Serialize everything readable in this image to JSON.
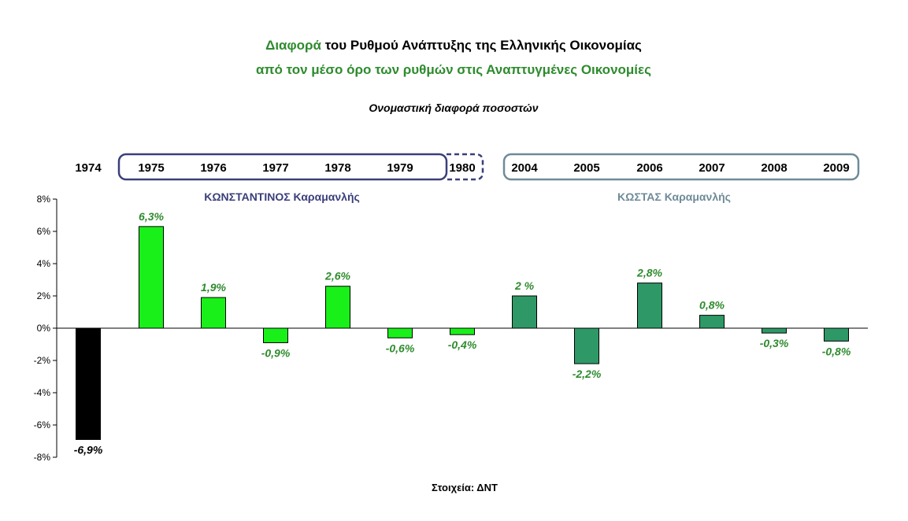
{
  "title": {
    "line1_green": "Διαφορά",
    "line1_rest": "του Ρυθμού Ανάπτυξης της Ελληνικής Οικονομίας",
    "line2": "από τον μέσο όρο των ρυθμών στις Αναπτυγμένες Οικονομίες"
  },
  "subtitle": "Ονομαστική διαφορά ποσοστών",
  "source": "Στοιχεία: ΔΝΤ",
  "groups": [
    {
      "label": "ΚΩΝΣΤΑΝΤΙΝΟΣ Καραμανλής",
      "years": [
        "1975",
        "1976",
        "1977",
        "1978",
        "1979",
        "1980"
      ],
      "color": "#3a3f7a"
    },
    {
      "label": "ΚΩΣΤΑΣ Καραμανλής",
      "years": [
        "2004",
        "2005",
        "2006",
        "2007",
        "2008",
        "2009"
      ],
      "color": "#6f8a98"
    }
  ],
  "colors": {
    "title_green": "#2e8b2e",
    "label_green": "#2e8b2e",
    "bar_1974": "#000000",
    "bar_1975_1980": "#19f019",
    "bar_2004_2009": "#2e9966"
  },
  "chart_data": {
    "type": "bar",
    "categories": [
      "1974",
      "1975",
      "1976",
      "1977",
      "1978",
      "1979",
      "1980",
      "2004",
      "2005",
      "2006",
      "2007",
      "2008",
      "2009"
    ],
    "values": [
      -6.9,
      6.3,
      1.9,
      -0.9,
      2.6,
      -0.6,
      -0.4,
      2.0,
      -2.2,
      2.8,
      0.8,
      -0.3,
      -0.8
    ],
    "data_labels": [
      "-6,9%",
      "6,3%",
      "1,9%",
      "-0,9%",
      "2,6%",
      "-0,6%",
      "-0,4%",
      "2 %",
      "-2,2%",
      "2,8%",
      "0,8%",
      "-0,3%",
      "-0,8%"
    ],
    "ylim": [
      -8,
      8
    ],
    "yticks": [
      8,
      6,
      4,
      2,
      0,
      -2,
      -4,
      -6,
      -8
    ],
    "ytick_labels": [
      "8%",
      "6%",
      "4%",
      "2%",
      "0%",
      "-2%",
      "-4%",
      "-6%",
      "-8%"
    ],
    "xlabel": "",
    "ylabel": "",
    "grid": false
  }
}
